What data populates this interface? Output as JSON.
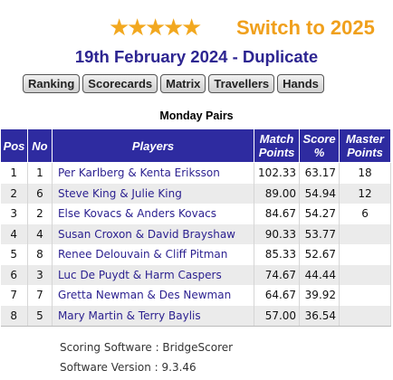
{
  "banner": {
    "stars": "★★★★★",
    "switch_text": "Switch to 2025"
  },
  "title": "19th February 2024 - Duplicate",
  "tabs": [
    "Ranking",
    "Scorecards",
    "Matrix",
    "Travellers",
    "Hands"
  ],
  "event_name": "Monday Pairs",
  "table": {
    "headers": {
      "pos": "Pos",
      "no": "No",
      "players": "Players",
      "match_points": "Match Points",
      "score_pct": "Score %",
      "master_points": "Master Points"
    },
    "rows": [
      {
        "pos": "1",
        "no": "1",
        "players": "Per Karlberg & Kenta Eriksson",
        "match_points": "102.33",
        "score_pct": "63.17",
        "master_points": "18"
      },
      {
        "pos": "2",
        "no": "6",
        "players": "Steve King & Julie King",
        "match_points": "89.00",
        "score_pct": "54.94",
        "master_points": "12"
      },
      {
        "pos": "3",
        "no": "2",
        "players": "Else Kovacs & Anders Kovacs",
        "match_points": "84.67",
        "score_pct": "54.27",
        "master_points": "6"
      },
      {
        "pos": "4",
        "no": "4",
        "players": "Susan Croxon & David Brayshaw",
        "match_points": "90.33",
        "score_pct": "53.77",
        "master_points": ""
      },
      {
        "pos": "5",
        "no": "8",
        "players": "Renee Delouvain & Cliff Pitman",
        "match_points": "85.33",
        "score_pct": "52.67",
        "master_points": ""
      },
      {
        "pos": "6",
        "no": "3",
        "players": "Luc De Puydt & Harm Caspers",
        "match_points": "74.67",
        "score_pct": "44.44",
        "master_points": ""
      },
      {
        "pos": "7",
        "no": "7",
        "players": "Gretta Newman & Des Newman",
        "match_points": "64.67",
        "score_pct": "39.92",
        "master_points": ""
      },
      {
        "pos": "8",
        "no": "5",
        "players": "Mary Martin & Terry Baylis",
        "match_points": "57.00",
        "score_pct": "36.54",
        "master_points": ""
      }
    ]
  },
  "footer": {
    "software": "Scoring Software : BridgeScorer",
    "version": "Software Version : 9.3.46"
  },
  "colors": {
    "header_bg": "#2e2ba0",
    "title": "#2d2591",
    "accent": "#f0a01c",
    "name_text": "#2a1f8f"
  }
}
